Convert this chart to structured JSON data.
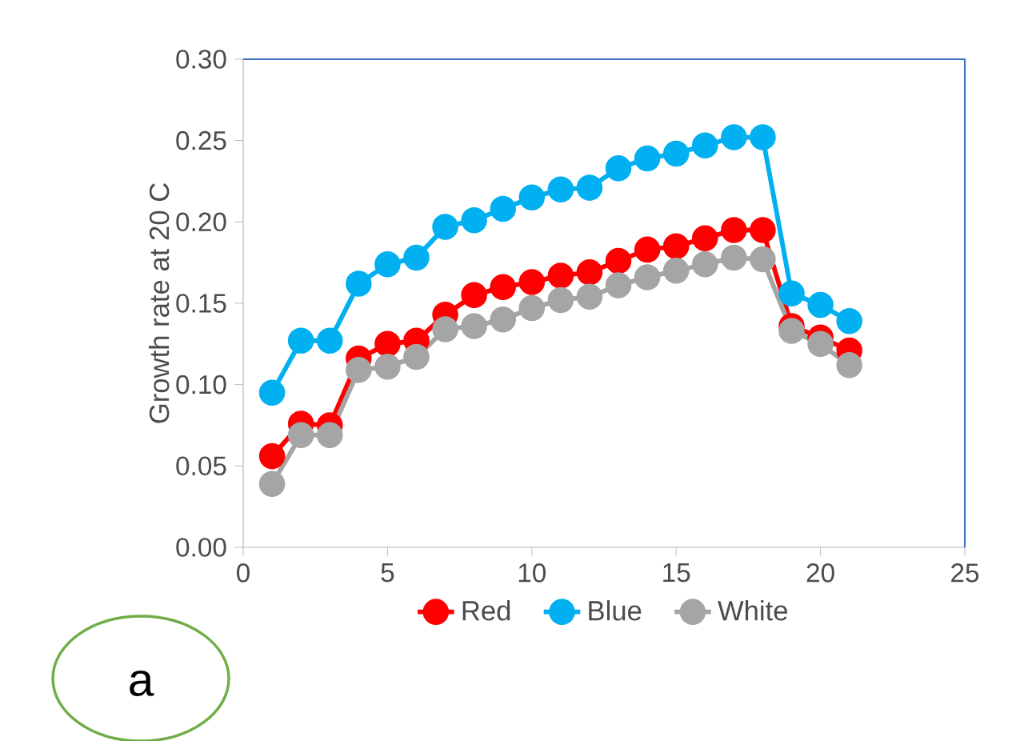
{
  "chart_data": {
    "type": "line",
    "ylabel": "Growth rate at 20 C",
    "x": [
      1,
      2,
      3,
      4,
      5,
      6,
      7,
      8,
      9,
      10,
      11,
      12,
      13,
      14,
      15,
      16,
      17,
      18,
      19,
      20,
      21
    ],
    "series": [
      {
        "name": "Red",
        "color": "#ff0000",
        "values": [
          0.056,
          0.076,
          0.075,
          0.116,
          0.125,
          0.127,
          0.143,
          0.155,
          0.16,
          0.163,
          0.167,
          0.169,
          0.176,
          0.183,
          0.185,
          0.19,
          0.195,
          0.195,
          0.136,
          0.129,
          0.121
        ]
      },
      {
        "name": "Blue",
        "color": "#00b0f0",
        "values": [
          0.095,
          0.127,
          0.127,
          0.162,
          0.174,
          0.178,
          0.197,
          0.201,
          0.208,
          0.215,
          0.22,
          0.221,
          0.233,
          0.239,
          0.242,
          0.247,
          0.252,
          0.252,
          0.156,
          0.149,
          0.139
        ]
      },
      {
        "name": "White",
        "color": "#a5a5a5",
        "values": [
          0.039,
          0.069,
          0.069,
          0.109,
          0.111,
          0.117,
          0.134,
          0.136,
          0.14,
          0.147,
          0.152,
          0.154,
          0.161,
          0.166,
          0.17,
          0.174,
          0.178,
          0.177,
          0.133,
          0.125,
          0.112
        ]
      }
    ],
    "xlim": [
      0,
      25
    ],
    "xticks": [
      0,
      5,
      10,
      15,
      20,
      25
    ],
    "ylim": [
      0,
      0.3
    ],
    "yticks": [
      {
        "value": 0,
        "label": "0.00"
      },
      {
        "value": 0.05,
        "label": "0.05"
      },
      {
        "value": 0.1,
        "label": "0.10"
      },
      {
        "value": 0.15,
        "label": "0.15"
      },
      {
        "value": 0.2,
        "label": "0.20"
      },
      {
        "value": 0.25,
        "label": "0.25"
      },
      {
        "value": 0.3,
        "label": "0.30"
      }
    ],
    "marker": "circle",
    "line_style": "solid",
    "legend": "bottom",
    "grid": false,
    "annotations": [
      "a"
    ]
  }
}
